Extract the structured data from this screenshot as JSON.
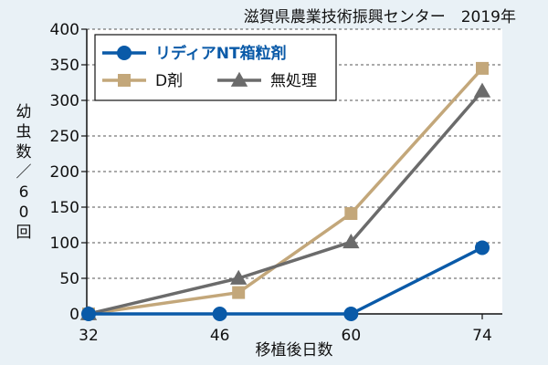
{
  "chart_data": {
    "type": "line",
    "source": "滋賀県農業技術振興センター　2019年",
    "xlabel": "移植後日数",
    "ylabel": "幼虫数／60回",
    "x": [
      32,
      46,
      60,
      74
    ],
    "x_ticks": [
      "32",
      "46",
      "60",
      "74"
    ],
    "ylim": [
      0,
      400
    ],
    "y_ticks": [
      "0",
      "50",
      "100",
      "150",
      "200",
      "250",
      "300",
      "350",
      "400"
    ],
    "grid": "horizontal-dashed",
    "legend_position": "top-left",
    "series": [
      {
        "name": "リディアNT箱粒剤",
        "color": "#0a5aa8",
        "marker": "circle",
        "x": [
          32,
          46,
          60,
          74
        ],
        "values": [
          0,
          0,
          0,
          93
        ]
      },
      {
        "name": "D剤",
        "color": "#c3a77a",
        "marker": "square",
        "x": [
          32,
          48,
          60,
          74
        ],
        "values": [
          0,
          30,
          141,
          345
        ]
      },
      {
        "name": "無処理",
        "color": "#6b6b6b",
        "marker": "triangle",
        "x": [
          32,
          48,
          60,
          74
        ],
        "values": [
          0,
          50,
          101,
          313
        ]
      }
    ]
  }
}
